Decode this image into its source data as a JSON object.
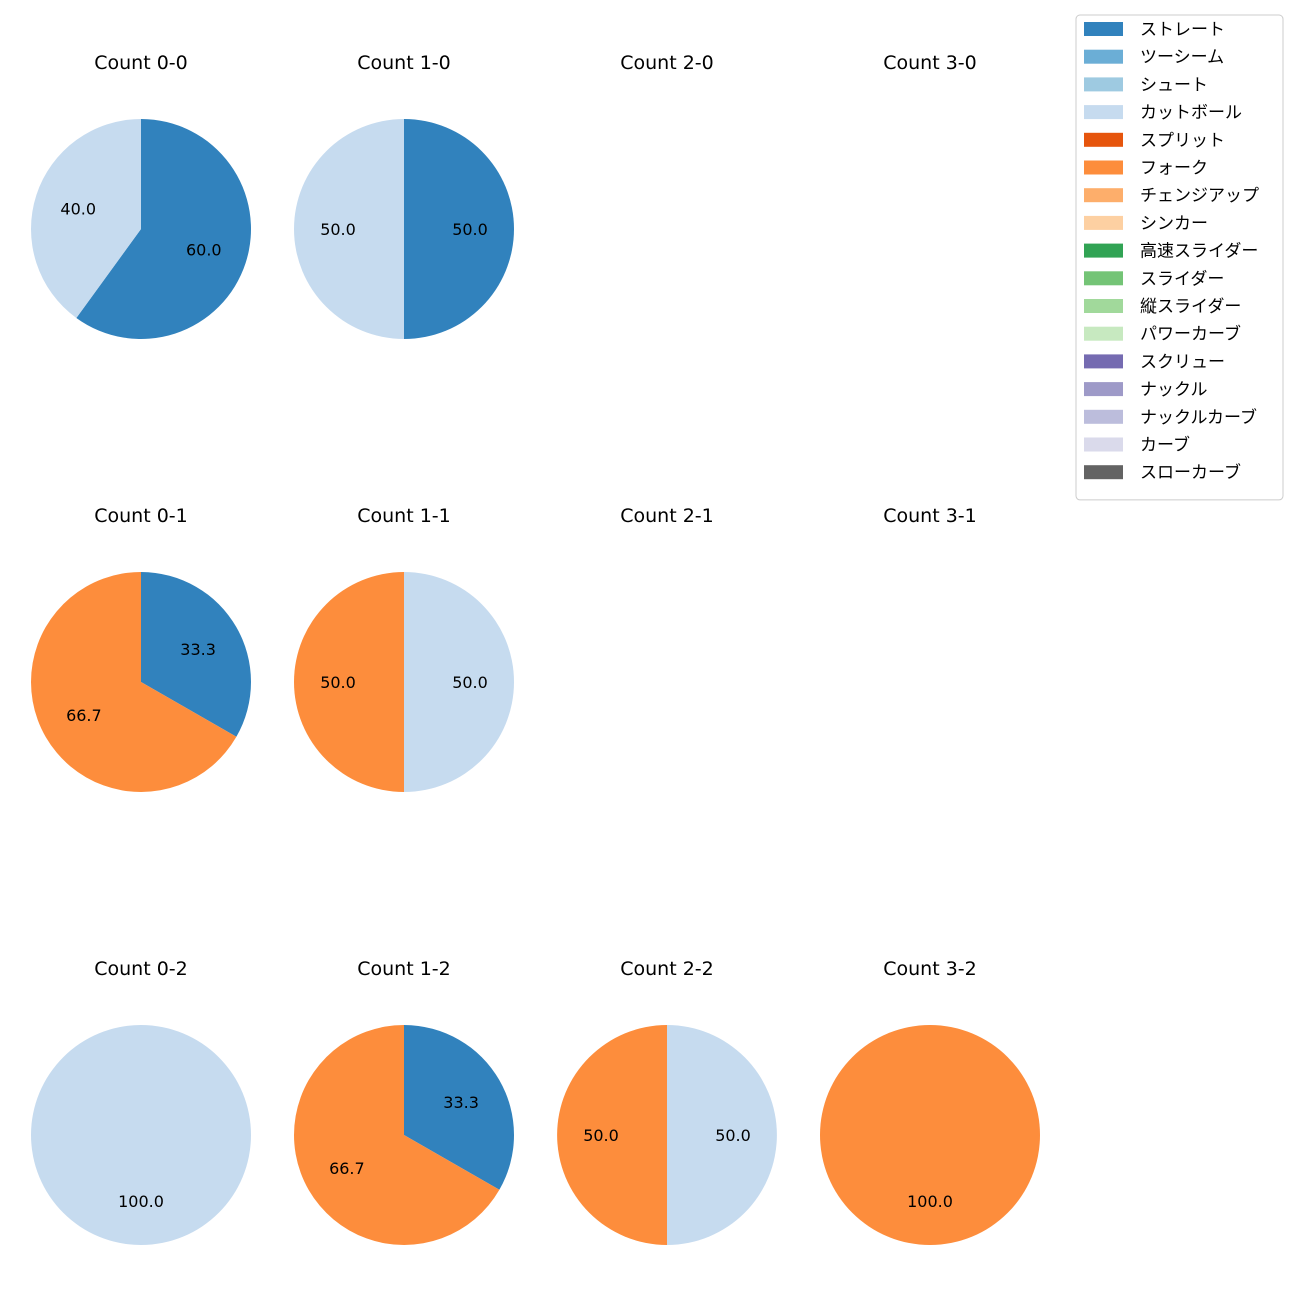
{
  "chart_data": {
    "type": "pie",
    "legend_position": "top-right",
    "series": [
      {
        "name": "ストレート",
        "color": "#3182bd"
      },
      {
        "name": "ツーシーム",
        "color": "#6baed6"
      },
      {
        "name": "シュート",
        "color": "#9ecae1"
      },
      {
        "name": "カットボール",
        "color": "#c6dbef"
      },
      {
        "name": "スプリット",
        "color": "#e6550d"
      },
      {
        "name": "フォーク",
        "color": "#fd8d3c"
      },
      {
        "name": "チェンジアップ",
        "color": "#fdae6b"
      },
      {
        "name": "シンカー",
        "color": "#fdd0a2"
      },
      {
        "name": "高速スライダー",
        "color": "#31a354"
      },
      {
        "name": "スライダー",
        "color": "#74c476"
      },
      {
        "name": "縦スライダー",
        "color": "#a1d99b"
      },
      {
        "name": "パワーカーブ",
        "color": "#c7e9c0"
      },
      {
        "name": "スクリュー",
        "color": "#756bb1"
      },
      {
        "name": "ナックル",
        "color": "#9e9ac8"
      },
      {
        "name": "ナックルカーブ",
        "color": "#bcbddc"
      },
      {
        "name": "カーブ",
        "color": "#dadaeb"
      },
      {
        "name": "スローカーブ",
        "color": "#636363"
      }
    ],
    "charts": [
      {
        "title": "Count 0-0",
        "slices": [
          {
            "series": "ストレート",
            "value": 60.0,
            "label": "60.0"
          },
          {
            "series": "カットボール",
            "value": 40.0,
            "label": "40.0"
          }
        ]
      },
      {
        "title": "Count 1-0",
        "slices": [
          {
            "series": "ストレート",
            "value": 50.0,
            "label": "50.0"
          },
          {
            "series": "カットボール",
            "value": 50.0,
            "label": "50.0"
          }
        ]
      },
      {
        "title": "Count 2-0",
        "slices": []
      },
      {
        "title": "Count 3-0",
        "slices": []
      },
      {
        "title": "Count 0-1",
        "slices": [
          {
            "series": "ストレート",
            "value": 33.3,
            "label": "33.3"
          },
          {
            "series": "フォーク",
            "value": 66.7,
            "label": "66.7"
          }
        ]
      },
      {
        "title": "Count 1-1",
        "slices": [
          {
            "series": "カットボール",
            "value": 50.0,
            "label": "50.0"
          },
          {
            "series": "フォーク",
            "value": 50.0,
            "label": "50.0"
          }
        ]
      },
      {
        "title": "Count 2-1",
        "slices": []
      },
      {
        "title": "Count 3-1",
        "slices": []
      },
      {
        "title": "Count 0-2",
        "slices": [
          {
            "series": "カットボール",
            "value": 100.0,
            "label": "100.0"
          }
        ]
      },
      {
        "title": "Count 1-2",
        "slices": [
          {
            "series": "ストレート",
            "value": 33.3,
            "label": "33.3"
          },
          {
            "series": "フォーク",
            "value": 66.7,
            "label": "66.7"
          }
        ]
      },
      {
        "title": "Count 2-2",
        "slices": [
          {
            "series": "カットボール",
            "value": 50.0,
            "label": "50.0"
          },
          {
            "series": "フォーク",
            "value": 50.0,
            "label": "50.0"
          }
        ]
      },
      {
        "title": "Count 3-2",
        "slices": [
          {
            "series": "フォーク",
            "value": 100.0,
            "label": "100.0"
          }
        ]
      }
    ]
  }
}
